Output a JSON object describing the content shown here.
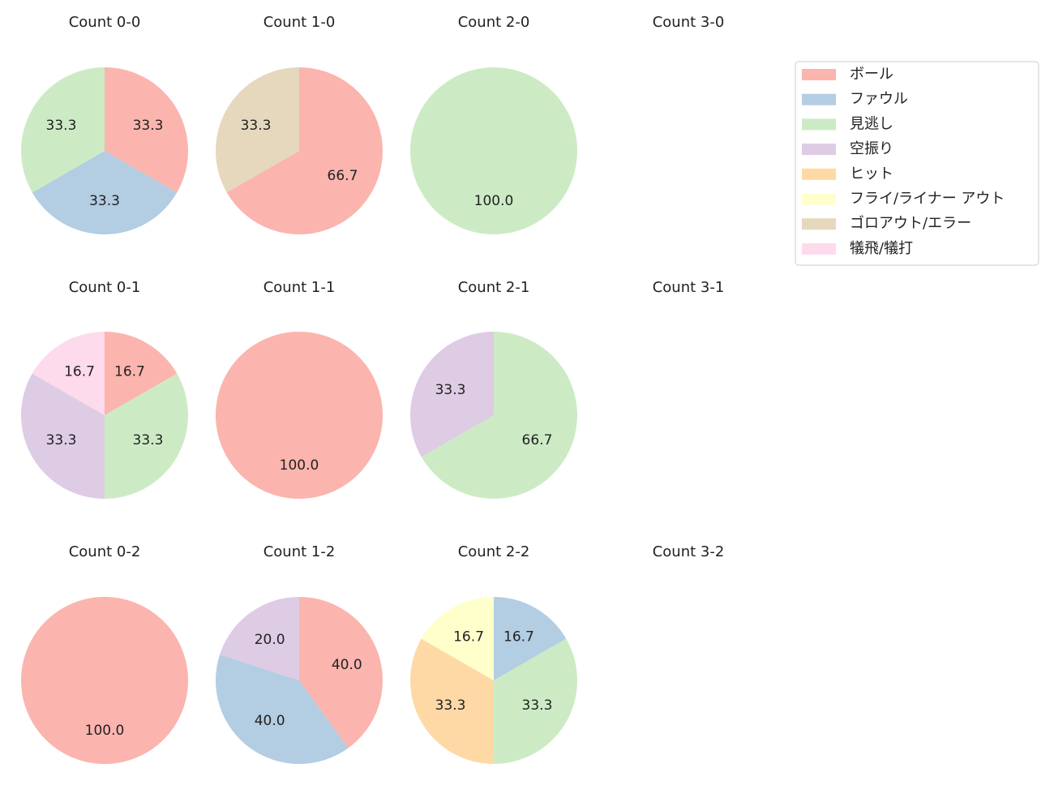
{
  "chart_data": [
    {
      "type": "pie",
      "title": "Count 0-0",
      "values": [
        33.3,
        33.3,
        33.3
      ],
      "value_labels": [
        "33.3",
        "33.3",
        "33.3"
      ],
      "colors": [
        "#fbb4ae",
        "#b3cde3",
        "#ccebc5"
      ]
    },
    {
      "type": "pie",
      "title": "Count 1-0",
      "values": [
        66.7,
        33.3
      ],
      "value_labels": [
        "66.7",
        "33.3"
      ],
      "colors": [
        "#fbb4ae",
        "#e5d8bd"
      ]
    },
    {
      "type": "pie",
      "title": "Count 2-0",
      "values": [
        100
      ],
      "value_labels": [
        "100.0"
      ],
      "colors": [
        "#ccebc5"
      ]
    },
    {
      "type": "pie",
      "title": "Count 3-0",
      "values": [],
      "value_labels": [],
      "colors": []
    },
    {
      "type": "pie",
      "title": "Count 0-1",
      "values": [
        16.7,
        33.3,
        33.3,
        16.7
      ],
      "value_labels": [
        "16.7",
        "33.3",
        "33.3",
        "16.7"
      ],
      "colors": [
        "#fbb4ae",
        "#ccebc5",
        "#decbe4",
        "#fddaec"
      ]
    },
    {
      "type": "pie",
      "title": "Count 1-1",
      "values": [
        100
      ],
      "value_labels": [
        "100.0"
      ],
      "colors": [
        "#fbb4ae"
      ]
    },
    {
      "type": "pie",
      "title": "Count 2-1",
      "values": [
        66.7,
        33.3
      ],
      "value_labels": [
        "66.7",
        "33.3"
      ],
      "colors": [
        "#ccebc5",
        "#decbe4"
      ]
    },
    {
      "type": "pie",
      "title": "Count 3-1",
      "values": [],
      "value_labels": [],
      "colors": []
    },
    {
      "type": "pie",
      "title": "Count 0-2",
      "values": [
        100
      ],
      "value_labels": [
        "100.0"
      ],
      "colors": [
        "#fbb4ae"
      ]
    },
    {
      "type": "pie",
      "title": "Count 1-2",
      "values": [
        40,
        40,
        20
      ],
      "value_labels": [
        "40.0",
        "40.0",
        "20.0"
      ],
      "colors": [
        "#fbb4ae",
        "#b3cde3",
        "#decbe4"
      ]
    },
    {
      "type": "pie",
      "title": "Count 2-2",
      "values": [
        16.7,
        33.3,
        33.3,
        16.7
      ],
      "value_labels": [
        "16.7",
        "33.3",
        "33.3",
        "16.7"
      ],
      "colors": [
        "#b3cde3",
        "#ccebc5",
        "#fed9a6",
        "#ffffcc"
      ]
    },
    {
      "type": "pie",
      "title": "Count 3-2",
      "values": [],
      "value_labels": [],
      "colors": []
    }
  ],
  "legend": {
    "position": "upper right",
    "labels": [
      "ボール",
      "ファウル",
      "見逃し",
      "空振り",
      "ヒット",
      "フライ/ライナー アウト",
      "ゴロアウト/エラー",
      "犠飛/犠打"
    ],
    "colors": [
      "#fbb4ae",
      "#b3cde3",
      "#ccebc5",
      "#decbe4",
      "#fed9a6",
      "#ffffcc",
      "#e5d8bd",
      "#fddaec"
    ]
  }
}
